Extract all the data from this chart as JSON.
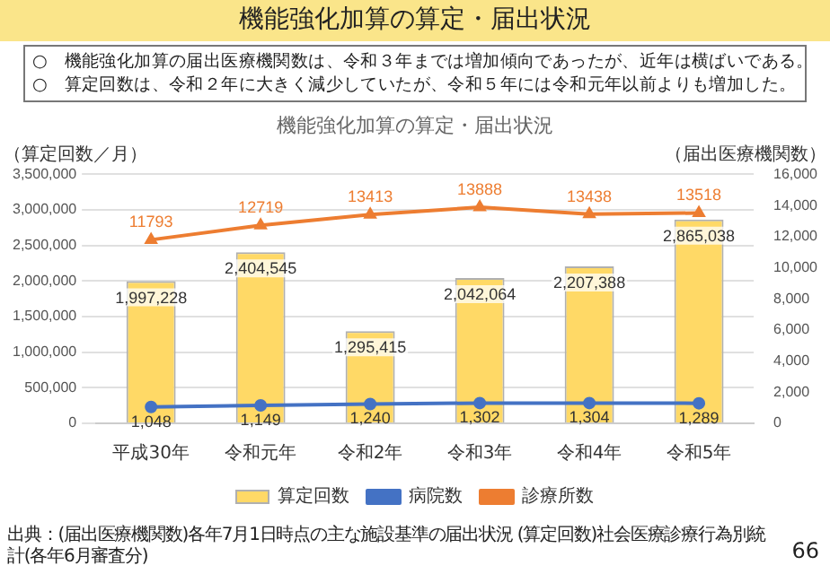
{
  "chart_data": {
    "type": "bar",
    "title": "機能強化加算の算定・届出状況",
    "ylabel": "（算定回数／月）",
    "y2label": "（届出医療機関数）",
    "categories": [
      "平成30年",
      "令和元年",
      "令和2年",
      "令和3年",
      "令和4年",
      "令和5年"
    ],
    "series": [
      {
        "name": "算定回数",
        "color": "#ffd966",
        "values": [
          1997228,
          2404545,
          1295415,
          2042064,
          2207388,
          2865038
        ],
        "value_labels": [
          "1,997,228",
          "2,404,545",
          "1,295,415",
          "2,042,064",
          "2,207,388",
          "2,865,038"
        ]
      },
      {
        "name": "病院数",
        "type": "line",
        "axis": "y2",
        "marker": "circle",
        "color": "#4472c4",
        "values": [
          1048,
          1149,
          1240,
          1302,
          1304,
          1289
        ],
        "value_labels": [
          "1,048",
          "1,149",
          "1,240",
          "1,302",
          "1,304",
          "1,289"
        ]
      },
      {
        "name": "診療所数",
        "type": "line",
        "axis": "y2",
        "marker": "triangle",
        "color": "#ed7d31",
        "values": [
          11793,
          12719,
          13413,
          13888,
          13438,
          13518
        ],
        "value_labels": [
          "11793",
          "12719",
          "13413",
          "13888",
          "13438",
          "13518"
        ]
      }
    ],
    "ylim": [
      0,
      3500000
    ],
    "yticks": [
      0,
      {
        "value": 500000,
        "label": "500,000"
      },
      {
        "value": 1000000,
        "label": "1,000,000"
      },
      {
        "value": 1500000,
        "label": "1,500,000"
      },
      {
        "value": 2000000,
        "label": "2,000,000"
      },
      {
        "value": 2500000,
        "label": "2,500,000"
      },
      {
        "value": 3000000,
        "label": "3,000,000"
      },
      {
        "value": 3500000,
        "label": "3,500,000"
      }
    ],
    "y2lim": [
      0,
      16000
    ],
    "y2ticks": [
      0,
      {
        "value": 2000,
        "label": "2,000"
      },
      {
        "value": 4000,
        "label": "4,000"
      },
      {
        "value": 6000,
        "label": "6,000"
      },
      {
        "value": 8000,
        "label": "8,000"
      },
      {
        "value": 10000,
        "label": "10,000"
      },
      {
        "value": 12000,
        "label": "12,000"
      },
      {
        "value": 14000,
        "label": "14,000"
      },
      {
        "value": 16000,
        "label": "16,000"
      }
    ],
    "grid": "y",
    "legend": "bottom",
    "annotations": [
      "機能強化加算の算定・届出状況",
      "○　機能強化加算の届出医療機関数は、令和３年までは増加傾向であったが、近年は横ばいである。",
      "○　算定回数は、令和２年に大きく減少していたが、令和５年には令和元年以前よりも増加した。",
      "出典：(届出医療機関数)各年7月1日時点の主な施設基準の届出状況 (算定回数)社会医療診療行為別統計(各年6月審査分)",
      "66"
    ]
  }
}
